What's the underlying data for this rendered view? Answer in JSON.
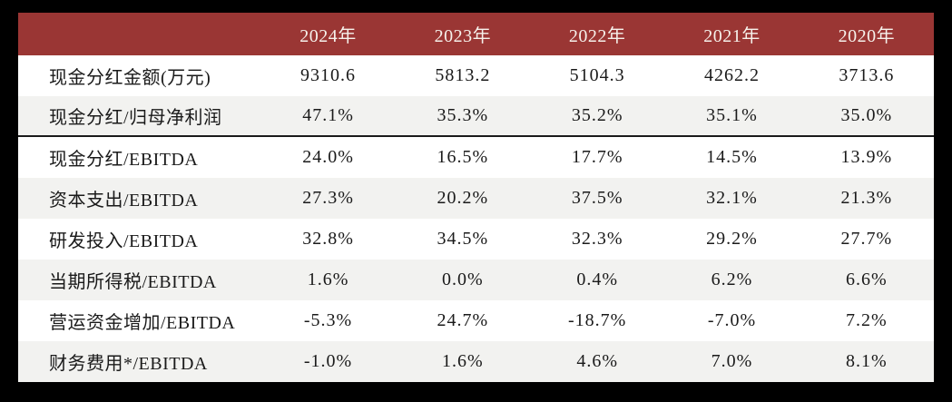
{
  "chart_data": {
    "type": "table",
    "columns": [
      "",
      "2024年",
      "2023年",
      "2022年",
      "2021年",
      "2020年"
    ],
    "rows": [
      {
        "label": "现金分红金额(万元)",
        "values": [
          "9310.6",
          "5813.2",
          "5104.3",
          "4262.2",
          "3713.6"
        ]
      },
      {
        "label": "现金分红/归母净利润",
        "values": [
          "47.1%",
          "35.3%",
          "35.2%",
          "35.1%",
          "35.0%"
        ]
      },
      {
        "label": "现金分红/EBITDA",
        "values": [
          "24.0%",
          "16.5%",
          "17.7%",
          "14.5%",
          "13.9%"
        ]
      },
      {
        "label": "资本支出/EBITDA",
        "values": [
          "27.3%",
          "20.2%",
          "37.5%",
          "32.1%",
          "21.3%"
        ]
      },
      {
        "label": "研发投入/EBITDA",
        "values": [
          "32.8%",
          "34.5%",
          "32.3%",
          "29.2%",
          "27.7%"
        ]
      },
      {
        "label": "当期所得税/EBITDA",
        "values": [
          "1.6%",
          "0.0%",
          "0.4%",
          "6.2%",
          "6.6%"
        ]
      },
      {
        "label": "营运资金增加/EBITDA",
        "values": [
          "-5.3%",
          "24.7%",
          "-18.7%",
          "-7.0%",
          "7.2%"
        ]
      },
      {
        "label": "财务费用*/EBITDA",
        "values": [
          "-1.0%",
          "1.6%",
          "4.6%",
          "7.0%",
          "8.1%"
        ]
      }
    ]
  },
  "colors": {
    "frame_bg": "#000000",
    "header_bg": "#9A3634",
    "header_text": "#F6F1EB",
    "row_bg": "#FFFFFF",
    "row_alt_bg": "#F2F2F0",
    "text": "#1A1A1A",
    "divider": "#1B1B1B"
  }
}
